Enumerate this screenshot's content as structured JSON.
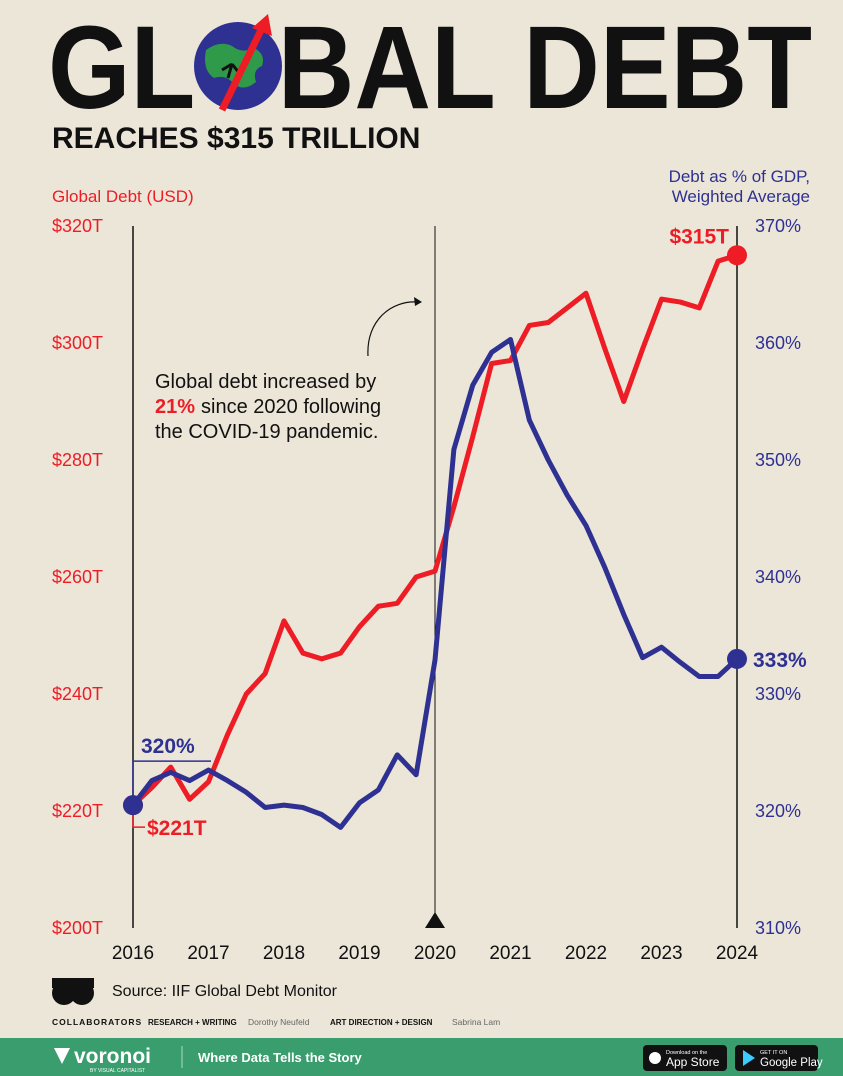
{
  "chart_data": {
    "type": "line",
    "title": "GLOBAL DEBT",
    "subtitle": "REACHES $315 TRILLION",
    "y_label": "Global Debt (USD)",
    "y2_label": [
      "Debt as % of GDP,",
      "Weighted Average"
    ],
    "annotation": {
      "line1": "Global debt increased by",
      "highlight": "21%",
      "line2": "since 2020 following",
      "line3": "the COVID-19 pandemic."
    },
    "source": "Source: IIF Global Debt Monitor",
    "vline": 2020,
    "xlim": [
      2016,
      2024
    ],
    "xticks": [
      2016,
      2017,
      2018,
      2019,
      2020,
      2021,
      2022,
      2023,
      2024
    ],
    "ylim": [
      200,
      320
    ],
    "yticks": [
      {
        "value": 200,
        "label": "$200T"
      },
      {
        "value": 220,
        "label": "$220T"
      },
      {
        "value": 240,
        "label": "$240T"
      },
      {
        "value": 260,
        "label": "$260T"
      },
      {
        "value": 280,
        "label": "$280T"
      },
      {
        "value": 300,
        "label": "$300T"
      },
      {
        "value": 320,
        "label": "$320T"
      }
    ],
    "y2lim": [
      310,
      370
    ],
    "y2ticks": [
      {
        "value": 310,
        "label": "310%"
      },
      {
        "value": 320,
        "label": "320%"
      },
      {
        "value": 330,
        "label": "330%"
      },
      {
        "value": 340,
        "label": "340%"
      },
      {
        "value": 350,
        "label": "350%"
      },
      {
        "value": 360,
        "label": "360%"
      },
      {
        "value": 370,
        "label": "370%"
      }
    ],
    "x": [
      2016,
      2016.25,
      2016.5,
      2016.75,
      2017,
      2017.25,
      2017.5,
      2017.75,
      2018,
      2018.25,
      2018.5,
      2018.75,
      2019,
      2019.25,
      2019.5,
      2019.75,
      2020,
      2020.25,
      2020.5,
      2020.75,
      2021,
      2021.25,
      2021.5,
      2021.75,
      2022,
      2022.25,
      2022.5,
      2022.75,
      2023,
      2023.25,
      2023.5,
      2023.75,
      2024
    ],
    "series": [
      {
        "name": "Global Debt (USD)",
        "color": "#ee1c25",
        "axis": "y",
        "values": [
          221,
          224,
          227.5,
          222,
          225,
          233,
          240,
          243.5,
          252.5,
          247,
          246,
          247,
          251.5,
          255,
          255.5,
          260,
          261,
          272,
          284,
          296.5,
          297,
          303,
          303.5,
          306,
          308.5,
          299,
          290,
          299,
          307.5,
          307,
          306,
          314,
          315
        ],
        "value_labels": [
          "$221T",
          null,
          null,
          null,
          null,
          null,
          null,
          null,
          null,
          null,
          null,
          null,
          null,
          null,
          null,
          null,
          null,
          null,
          null,
          null,
          null,
          null,
          null,
          null,
          null,
          null,
          null,
          null,
          null,
          null,
          null,
          null,
          "$315T"
        ]
      },
      {
        "name": "Debt as % of GDP",
        "color": "#2e3192",
        "axis": "y2",
        "values": [
          320.5,
          322.6,
          323.3,
          322.6,
          323.5,
          322.6,
          321.6,
          320.3,
          320.5,
          320.3,
          319.7,
          318.6,
          320.7,
          321.8,
          324.8,
          323.1,
          332.9,
          350.9,
          356.4,
          359.2,
          360.3,
          353.4,
          350,
          347,
          344.4,
          340.8,
          336.8,
          333.1,
          334,
          332.7,
          331.5,
          331.5,
          333
        ],
        "value_labels": [
          "320%",
          null,
          null,
          null,
          null,
          null,
          null,
          null,
          null,
          null,
          null,
          null,
          null,
          null,
          null,
          null,
          null,
          null,
          null,
          null,
          null,
          null,
          null,
          null,
          null,
          null,
          null,
          null,
          null,
          null,
          null,
          null,
          "333%"
        ]
      }
    ]
  },
  "credits": {
    "label": "COLLABORATORS",
    "role1": "RESEARCH + WRITING",
    "name1": "Dorothy Neufeld",
    "role2": "ART DIRECTION + DESIGN",
    "name2": "Sabrina Lam"
  },
  "footer": {
    "brand": "voronoi",
    "brand_sub": "BY VISUAL CAPITALIST",
    "tagline": "Where Data Tells the Story",
    "appstore_small": "Download on the",
    "appstore": "App Store",
    "play_small": "GET IT ON",
    "play": "Google Play"
  }
}
